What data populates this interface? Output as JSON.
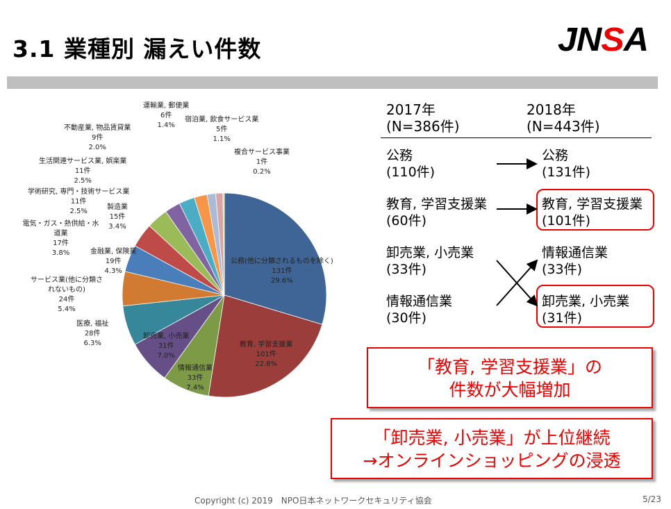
{
  "title": "3.1 業種別 漏えい件数",
  "logo": {
    "text1": "JN",
    "text2": "S",
    "text3": "A"
  },
  "chart_data": {
    "type": "pie",
    "title": "",
    "slices": [
      {
        "label": "公務(他に分類されるものを除く)",
        "count": "131件",
        "value": 131,
        "percent": "29.6%",
        "color": "#3e6595"
      },
      {
        "label": "教育, 学習支援業",
        "count": "101件",
        "value": 101,
        "percent": "22.8%",
        "color": "#9b3d3a"
      },
      {
        "label": "情報通信業",
        "count": "33件",
        "value": 33,
        "percent": "7.4%",
        "color": "#7d9a47"
      },
      {
        "label": "卸売業, 小売業",
        "count": "31件",
        "value": 31,
        "percent": "7.0%",
        "color": "#654f86"
      },
      {
        "label": "医療, 福祉",
        "count": "28件",
        "value": 28,
        "percent": "6.3%",
        "color": "#37879b"
      },
      {
        "label": "サービス業(他に分類されないもの)",
        "count": "24件",
        "value": 24,
        "percent": "5.4%",
        "color": "#d17a32"
      },
      {
        "label": "金融業, 保険業",
        "count": "19件",
        "value": 19,
        "percent": "4.3%",
        "color": "#4a7ebb"
      },
      {
        "label": "電気・ガス・熱供給・水道業",
        "count": "17件",
        "value": 17,
        "percent": "3.8%",
        "color": "#be4b48"
      },
      {
        "label": "製造業",
        "count": "15件",
        "value": 15,
        "percent": "3.4%",
        "color": "#9bbb59"
      },
      {
        "label": "学術研究, 専門・技術サービス業",
        "count": "11件",
        "value": 11,
        "percent": "2.5%",
        "color": "#8064a2"
      },
      {
        "label": "生活関連サービス業, 娯楽業",
        "count": "11件",
        "value": 11,
        "percent": "2.5%",
        "color": "#4bacc6"
      },
      {
        "label": "不動産業, 物品賃貸業",
        "count": "9件",
        "value": 9,
        "percent": "2.0%",
        "color": "#f79646"
      },
      {
        "label": "運輸業, 郵便業",
        "count": "6件",
        "value": 6,
        "percent": "1.4%",
        "color": "#aabad7"
      },
      {
        "label": "宿泊業, 飲食サービス業",
        "count": "5件",
        "value": 5,
        "percent": "1.1%",
        "color": "#d9a5a4"
      },
      {
        "label": "複合サービス事業",
        "count": "1件",
        "value": 1,
        "percent": "0.2%",
        "color": "#c3d69b"
      }
    ]
  },
  "comparison": {
    "col2017": {
      "year": "2017年",
      "n": "(N=386件)",
      "items": [
        [
          "公務",
          "(110件)"
        ],
        [
          "教育, 学習支援業",
          "(60件)"
        ],
        [
          "卸売業, 小売業",
          "(33件)"
        ],
        [
          "情報通信業",
          "(30件)"
        ]
      ]
    },
    "col2018": {
      "year": "2018年",
      "n": "(N=443件)",
      "items": [
        [
          "公務",
          "(131件)"
        ],
        [
          "教育, 学習支援業",
          "(101件)"
        ],
        [
          "情報通信業",
          "(33件)"
        ],
        [
          "卸売業, 小売業",
          "(31件)"
        ]
      ]
    }
  },
  "callouts": [
    [
      "「教育, 学習支援業」の",
      "件数が大幅増加"
    ],
    [
      "「卸売業, 小売業」が上位継続",
      "→オンラインショッピングの浸透"
    ]
  ],
  "footer": "Copyright (c) 2019　NPO日本ネットワークセキュリティ協会",
  "page": "5/23"
}
